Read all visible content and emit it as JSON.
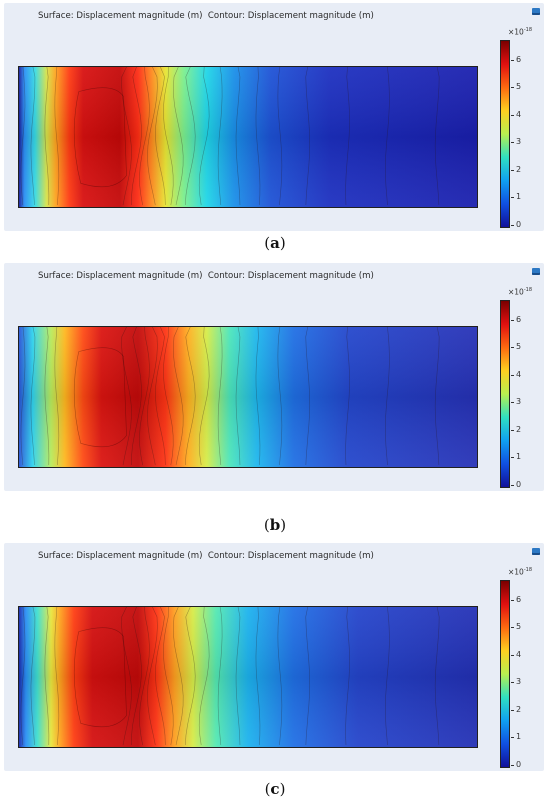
{
  "panels": [
    {
      "id": "a",
      "title": "Surface: Displacement magnitude (m)  Contour: Displacement magnitude (m)",
      "caption_letter": "a",
      "background": "#e8edf6",
      "colorbar_exponent": "-18",
      "colorbar_ticks": [
        "6",
        "5",
        "4",
        "3",
        "2",
        "1",
        "0"
      ],
      "field_profile": [
        [
          0.0,
          "#1a1f9e"
        ],
        [
          0.012,
          "#2a8ff5"
        ],
        [
          0.035,
          "#36dbe6"
        ],
        [
          0.06,
          "#d7e34a"
        ],
        [
          0.08,
          "#ffa31f"
        ],
        [
          0.11,
          "#ff3a12"
        ],
        [
          0.14,
          "#d81010"
        ],
        [
          0.22,
          "#c40808"
        ],
        [
          0.26,
          "#ff2d14"
        ],
        [
          0.29,
          "#ff8a1e"
        ],
        [
          0.32,
          "#e8e532"
        ],
        [
          0.36,
          "#7bf08f"
        ],
        [
          0.41,
          "#1fd6e8"
        ],
        [
          0.47,
          "#198fe9"
        ],
        [
          0.55,
          "#1d52d6"
        ],
        [
          0.68,
          "#1c2fc0"
        ],
        [
          1.0,
          "#1a1fae"
        ]
      ]
    },
    {
      "id": "b",
      "title": "Surface: Displacement magnitude (m)  Contour: Displacement magnitude (m)",
      "caption_letter": "b",
      "background": "#e8edf6",
      "colorbar_exponent": "-18",
      "colorbar_ticks": [
        "6",
        "5",
        "4",
        "3",
        "2",
        "1",
        "0"
      ],
      "field_profile": [
        [
          0.0,
          "#2a55d8"
        ],
        [
          0.03,
          "#2fd3ef"
        ],
        [
          0.07,
          "#b9ec5c"
        ],
        [
          0.1,
          "#ffb81f"
        ],
        [
          0.14,
          "#ff4a14"
        ],
        [
          0.18,
          "#db1410"
        ],
        [
          0.26,
          "#c20a0a"
        ],
        [
          0.32,
          "#ff3414"
        ],
        [
          0.37,
          "#ffb021"
        ],
        [
          0.41,
          "#d6ed49"
        ],
        [
          0.46,
          "#4ce6bb"
        ],
        [
          0.52,
          "#1db6ee"
        ],
        [
          0.6,
          "#1f6fe4"
        ],
        [
          0.72,
          "#2346cc"
        ],
        [
          1.0,
          "#2631b6"
        ]
      ]
    },
    {
      "id": "c",
      "title": "Surface: Displacement magnitude (m)  Contour: Displacement magnitude (m)",
      "caption_letter": "c",
      "background": "#e8edf6",
      "colorbar_exponent": "-18",
      "colorbar_ticks": [
        "6",
        "5",
        "4",
        "3",
        "2",
        "1",
        "0"
      ],
      "field_profile": [
        [
          0.0,
          "#1a2bb0"
        ],
        [
          0.015,
          "#2a8ff5"
        ],
        [
          0.04,
          "#3fe0d0"
        ],
        [
          0.07,
          "#e9e73e"
        ],
        [
          0.09,
          "#ffa21e"
        ],
        [
          0.12,
          "#ff3d12"
        ],
        [
          0.16,
          "#d51010"
        ],
        [
          0.26,
          "#c20909"
        ],
        [
          0.3,
          "#ff3414"
        ],
        [
          0.34,
          "#ffa020"
        ],
        [
          0.38,
          "#d7ec48"
        ],
        [
          0.43,
          "#54e9b2"
        ],
        [
          0.5,
          "#1cb3ee"
        ],
        [
          0.6,
          "#1f6fe5"
        ],
        [
          0.74,
          "#2444cb"
        ],
        [
          1.0,
          "#2330b5"
        ]
      ]
    }
  ],
  "colorbar_colors": [
    "#7a0000",
    "#e01010",
    "#ff6a10",
    "#ffd020",
    "#b8f050",
    "#30e0c0",
    "#10a0f0",
    "#1050e0",
    "#10109a"
  ]
}
